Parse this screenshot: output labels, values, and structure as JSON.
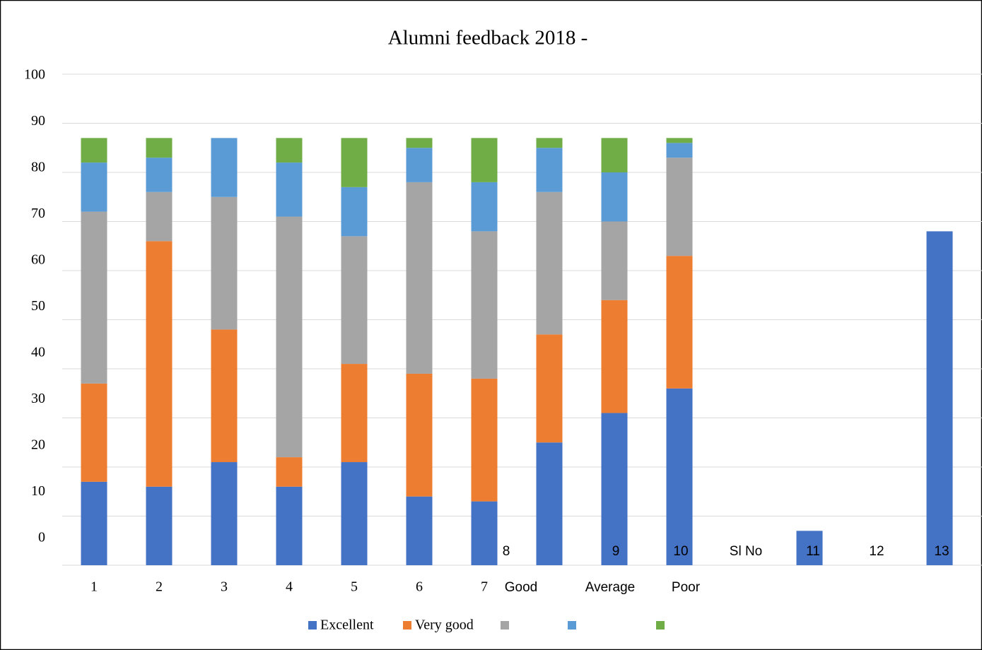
{
  "chart_data": {
    "type": "bar",
    "stacked": true,
    "title": "Alumni feedback 2018 -",
    "categories": [
      "1",
      "2",
      "3",
      "4",
      "5",
      "6",
      "7",
      "Good",
      "Average",
      "Poor",
      null,
      null,
      null,
      null
    ],
    "annotations": [
      "8",
      "9",
      "10",
      "Sl No",
      "11",
      "12",
      "13"
    ],
    "series": [
      {
        "name": "Excellent",
        "color": "#4472c4",
        "values": [
          17,
          16,
          21,
          16,
          21,
          14,
          13,
          25,
          31,
          36,
          null,
          7,
          null,
          68
        ]
      },
      {
        "name": "Very good",
        "color": "#ed7d31",
        "values": [
          20,
          50,
          27,
          6,
          20,
          25,
          25,
          22,
          23,
          27,
          null,
          null,
          null,
          null
        ]
      },
      {
        "color": "#a5a5a5",
        "values": [
          35,
          10,
          27,
          49,
          26,
          39,
          30,
          29,
          16,
          20,
          null,
          null,
          null,
          null
        ]
      },
      {
        "color": "#5b9bd5",
        "values": [
          10,
          7,
          12,
          11,
          10,
          7,
          10,
          9,
          10,
          3,
          null,
          null,
          null,
          null
        ]
      },
      {
        "color": "#70ad47",
        "values": [
          5,
          4,
          0,
          5,
          10,
          2,
          9,
          2,
          7,
          1,
          null,
          null,
          null,
          null
        ]
      }
    ],
    "ylim": [
      0,
      100
    ],
    "yticks": [
      0,
      10,
      20,
      30,
      40,
      50,
      60,
      70,
      80,
      90,
      100
    ],
    "grid": true,
    "legend": "bottom"
  }
}
